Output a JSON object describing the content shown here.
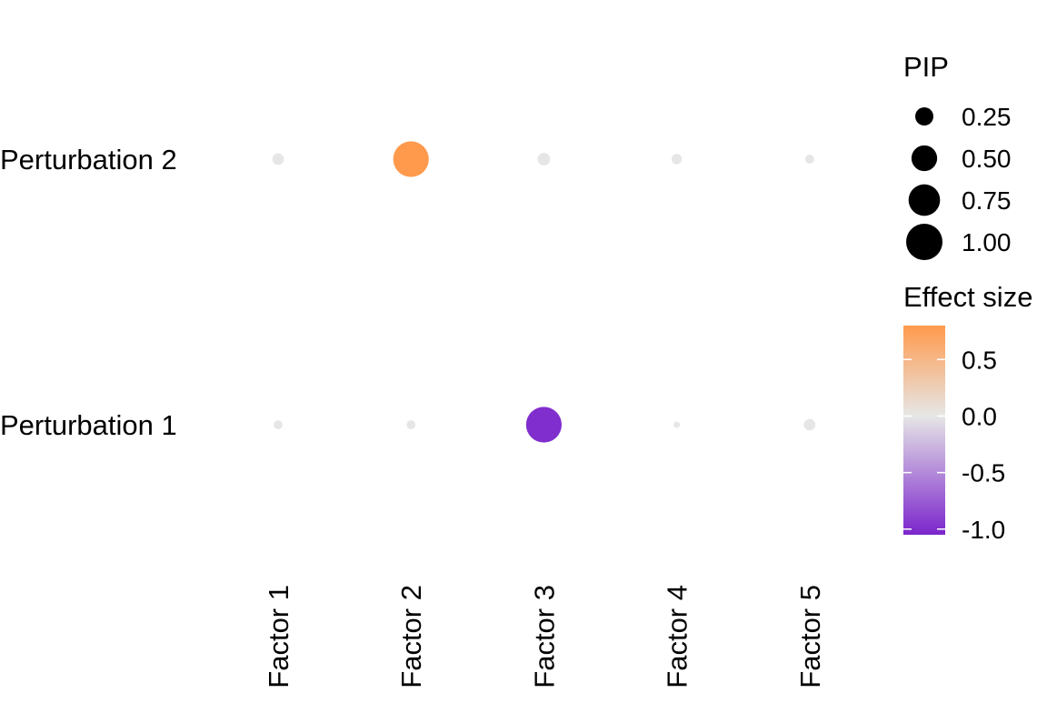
{
  "chart_data": {
    "type": "scatter",
    "title": "",
    "xlabel": "",
    "ylabel": "",
    "x_categories": [
      "Factor 1",
      "Factor 2",
      "Factor 3",
      "Factor 4",
      "Factor 5"
    ],
    "y_categories": [
      "Perturbation 1",
      "Perturbation 2"
    ],
    "grid": false,
    "points": [
      {
        "x": "Factor 1",
        "y": "Perturbation 2",
        "pip": 0.1,
        "effect": 0.0
      },
      {
        "x": "Factor 2",
        "y": "Perturbation 2",
        "pip": 0.96,
        "effect": 0.8
      },
      {
        "x": "Factor 3",
        "y": "Perturbation 2",
        "pip": 0.12,
        "effect": 0.0
      },
      {
        "x": "Factor 4",
        "y": "Perturbation 2",
        "pip": 0.08,
        "effect": 0.0
      },
      {
        "x": "Factor 5",
        "y": "Perturbation 2",
        "pip": 0.06,
        "effect": 0.0
      },
      {
        "x": "Factor 1",
        "y": "Perturbation 1",
        "pip": 0.06,
        "effect": 0.0
      },
      {
        "x": "Factor 2",
        "y": "Perturbation 1",
        "pip": 0.06,
        "effect": 0.0
      },
      {
        "x": "Factor 3",
        "y": "Perturbation 1",
        "pip": 0.96,
        "effect": -1.0
      },
      {
        "x": "Factor 4",
        "y": "Perturbation 1",
        "pip": 0.03,
        "effect": 0.0
      },
      {
        "x": "Factor 5",
        "y": "Perturbation 1",
        "pip": 0.1,
        "effect": 0.0
      }
    ],
    "size_legend": {
      "title": "PIP",
      "values": [
        0.25,
        0.5,
        0.75,
        1.0
      ],
      "labels": [
        "0.25",
        "0.50",
        "0.75",
        "1.00"
      ]
    },
    "color_legend": {
      "title": "Effect size",
      "range": [
        -1.05,
        0.8
      ],
      "ticks": [
        0.5,
        0.0,
        -0.5,
        -1.0
      ],
      "tick_labels": [
        "0.5",
        "0.0",
        "-0.5",
        "-1.0"
      ],
      "low_color": "#7b25cc",
      "mid_color": "#e6e6e6",
      "high_color": "#ff9a4d"
    },
    "legend_position": "right"
  }
}
